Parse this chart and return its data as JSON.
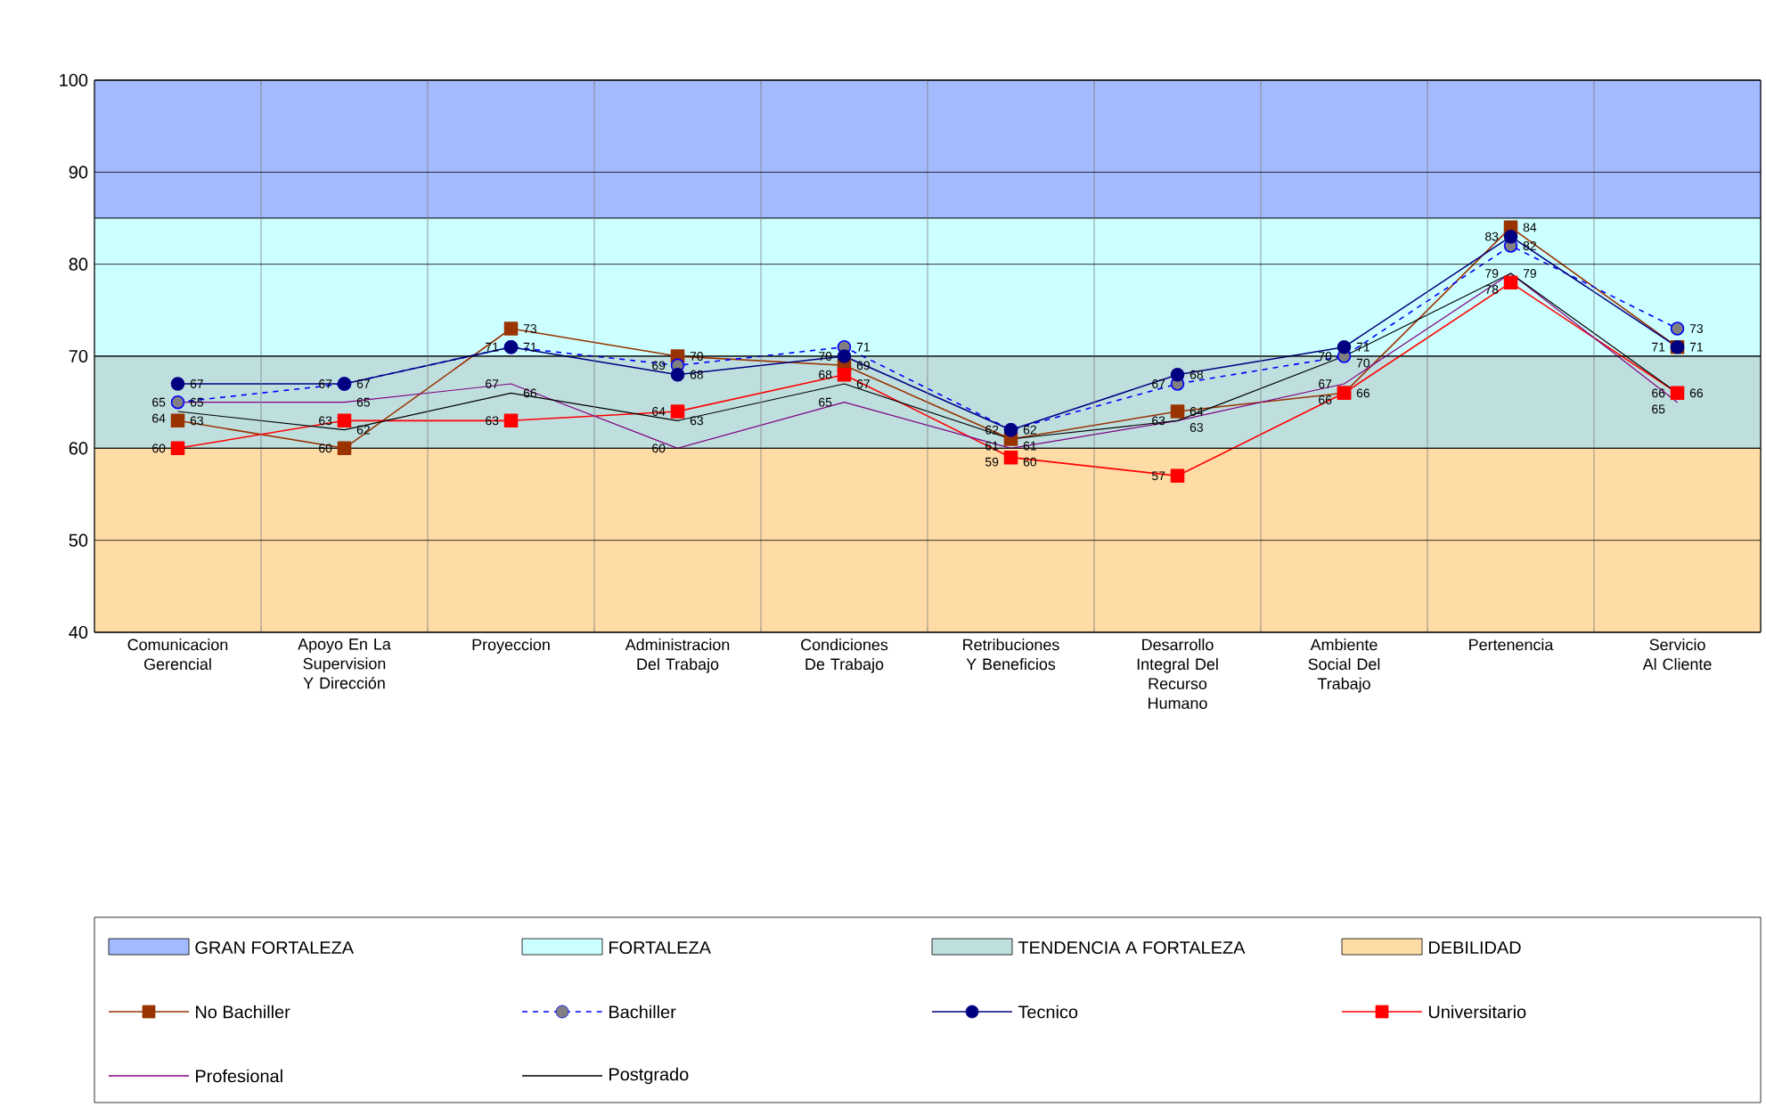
{
  "chart_data": {
    "type": "line",
    "categories": [
      "Comunicacion Gerencial",
      "Apoyo En La Supervision Y Dirección",
      "Proyeccion",
      "Administracion Del Trabajo",
      "Condiciones De Trabajo",
      "Retribuciones Y Beneficios",
      "Desarrollo Integral Del Recurso Humano",
      "Ambiente Social Del Trabajo",
      "Pertenencia",
      "Servicio Al Cliente"
    ],
    "series": [
      {
        "name": "No Bachiller",
        "color": "#993300",
        "marker": "square",
        "line_style": "solid",
        "values": [
          63,
          60,
          73,
          70,
          69,
          61,
          64,
          66,
          84,
          71
        ]
      },
      {
        "name": "Bachiller",
        "color": "#0000ff",
        "marker": "circle",
        "line_style": "dashed",
        "values": [
          65,
          67,
          71,
          69,
          71,
          62,
          67,
          70,
          82,
          73
        ]
      },
      {
        "name": "Tecnico",
        "color": "#000080",
        "marker": "circle",
        "line_style": "solid",
        "values": [
          67,
          67,
          71,
          68,
          70,
          62,
          68,
          71,
          83,
          71
        ]
      },
      {
        "name": "Universitario",
        "color": "#ff0000",
        "marker": "square",
        "line_style": "solid",
        "values": [
          60,
          63,
          63,
          64,
          68,
          59,
          57,
          66,
          78,
          66
        ]
      },
      {
        "name": "Profesional",
        "color": "#800080",
        "marker": "none",
        "line_style": "solid",
        "values": [
          65,
          65,
          67,
          60,
          65,
          60,
          63,
          67,
          79,
          65
        ]
      },
      {
        "name": "Postgrado",
        "color": "#000000",
        "marker": "none",
        "line_style": "solid",
        "values": [
          64,
          62,
          66,
          63,
          67,
          61,
          63,
          70,
          79,
          66
        ]
      }
    ],
    "bands": [
      {
        "axis": "y",
        "from": 85,
        "to": 100,
        "label": "GRAN FORTALEZA",
        "color": "#a3baff"
      },
      {
        "axis": "y",
        "from": 70,
        "to": 85,
        "label": "FORTALEZA",
        "color": "#ccffff"
      },
      {
        "axis": "y",
        "from": 60,
        "to": 70,
        "label": "TENDENCIA A FORTALEZA",
        "color": "#bfdfdf"
      },
      {
        "axis": "y",
        "from": 40,
        "to": 60,
        "label": "DEBILIDAD",
        "color": "#ffdba6"
      }
    ],
    "ylim": [
      40,
      100
    ],
    "yticks": [
      40,
      50,
      60,
      70,
      80,
      90,
      100
    ],
    "grid": true,
    "legend": "bottom",
    "data_labels": true
  }
}
